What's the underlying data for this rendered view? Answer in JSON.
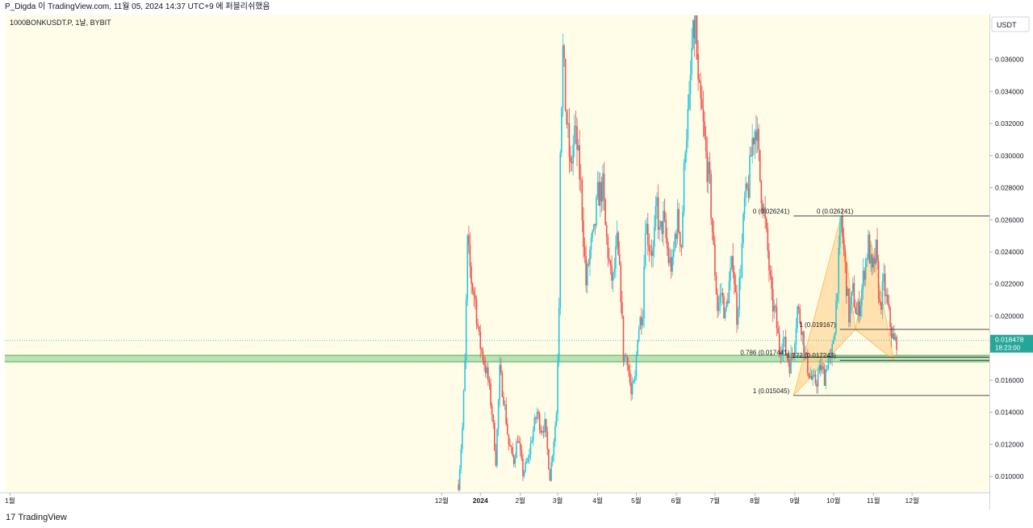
{
  "header": {
    "attribution": "P_Digda 이 TradingView.com, 11월 05, 2024 14:37 UTC+9 에 퍼블리쉬했음"
  },
  "footer": {
    "brand_mark": "17",
    "brand_name": "TradingView"
  },
  "chart_data": {
    "type": "candlestick",
    "symbol": "1000BONKUSDT.P, 1날, BYBIT",
    "currency_label": "USDT",
    "ylim": [
      0.009,
      0.0388
    ],
    "y_ticks": [
      "0.010000",
      "0.012000",
      "0.014000",
      "0.016000",
      "0.018000",
      "0.020000",
      "0.022000",
      "0.024000",
      "0.026000",
      "0.028000",
      "0.030000",
      "0.032000",
      "0.034000",
      "0.036000"
    ],
    "x_ticks": [
      {
        "label": "1월",
        "day": 0
      },
      {
        "label": "12월",
        "day": 335
      },
      {
        "label": "2024",
        "day": 365
      },
      {
        "label": "2월",
        "day": 396
      },
      {
        "label": "3월",
        "day": 425
      },
      {
        "label": "4월",
        "day": 456
      },
      {
        "label": "5월",
        "day": 486
      },
      {
        "label": "6월",
        "day": 517
      },
      {
        "label": "7월",
        "day": 547
      },
      {
        "label": "8월",
        "day": 578
      },
      {
        "label": "9월",
        "day": 609
      },
      {
        "label": "10월",
        "day": 639
      },
      {
        "label": "11월",
        "day": 670
      },
      {
        "label": "12월",
        "day": 700
      }
    ],
    "up_color": "#26c6da",
    "down_color": "#ef5350",
    "background_color": "#fffde8",
    "last_price": "0.018478",
    "countdown": "18:23:00",
    "support_zone": [
      0.01715,
      0.01755
    ],
    "support_zone_color": "#4caf50",
    "path": [
      [
        348,
        0.0095
      ],
      [
        351,
        0.013
      ],
      [
        353,
        0.017
      ],
      [
        355,
        0.0245
      ],
      [
        358,
        0.0222
      ],
      [
        361,
        0.021
      ],
      [
        364,
        0.0185
      ],
      [
        367,
        0.0175
      ],
      [
        371,
        0.016
      ],
      [
        374,
        0.014
      ],
      [
        377,
        0.011
      ],
      [
        380,
        0.0165
      ],
      [
        383,
        0.015
      ],
      [
        387,
        0.012
      ],
      [
        391,
        0.011
      ],
      [
        394,
        0.0125
      ],
      [
        398,
        0.0102
      ],
      [
        402,
        0.011
      ],
      [
        405,
        0.0125
      ],
      [
        409,
        0.014
      ],
      [
        412,
        0.013
      ],
      [
        415,
        0.0132
      ],
      [
        419,
        0.01
      ],
      [
        424,
        0.014
      ],
      [
        426,
        0.021
      ],
      [
        427,
        0.031
      ],
      [
        429,
        0.0365
      ],
      [
        431,
        0.0332
      ],
      [
        435,
        0.029
      ],
      [
        438,
        0.0315
      ],
      [
        440,
        0.0305
      ],
      [
        443,
        0.028
      ],
      [
        447,
        0.022
      ],
      [
        450,
        0.024
      ],
      [
        453,
        0.025
      ],
      [
        456,
        0.0275
      ],
      [
        460,
        0.028
      ],
      [
        462,
        0.0255
      ],
      [
        466,
        0.0225
      ],
      [
        468,
        0.0222
      ],
      [
        471,
        0.0245
      ],
      [
        474,
        0.0215
      ],
      [
        476,
        0.0175
      ],
      [
        479,
        0.0175
      ],
      [
        482,
        0.015
      ],
      [
        485,
        0.016
      ],
      [
        487,
        0.019
      ],
      [
        491,
        0.0205
      ],
      [
        493,
        0.026
      ],
      [
        496,
        0.0245
      ],
      [
        499,
        0.024
      ],
      [
        502,
        0.027
      ],
      [
        504,
        0.025
      ],
      [
        507,
        0.026
      ],
      [
        511,
        0.0235
      ],
      [
        514,
        0.023
      ],
      [
        516,
        0.025
      ],
      [
        518,
        0.026
      ],
      [
        521,
        0.0245
      ],
      [
        524,
        0.031
      ],
      [
        527,
        0.033
      ],
      [
        529,
        0.0365
      ],
      [
        532,
        0.0385
      ],
      [
        534,
        0.034
      ],
      [
        537,
        0.0325
      ],
      [
        540,
        0.03
      ],
      [
        543,
        0.028
      ],
      [
        546,
        0.024
      ],
      [
        549,
        0.0205
      ],
      [
        552,
        0.0215
      ],
      [
        555,
        0.02
      ],
      [
        558,
        0.022
      ],
      [
        561,
        0.0235
      ],
      [
        564,
        0.02
      ],
      [
        567,
        0.023
      ],
      [
        570,
        0.027
      ],
      [
        573,
        0.028
      ],
      [
        576,
        0.031
      ],
      [
        579,
        0.032
      ],
      [
        582,
        0.0285
      ],
      [
        585,
        0.0265
      ],
      [
        588,
        0.024
      ],
      [
        591,
        0.021
      ],
      [
        594,
        0.02
      ],
      [
        597,
        0.018
      ],
      [
        600,
        0.0185
      ],
      [
        603,
        0.0175
      ],
      [
        605,
        0.017
      ],
      [
        608,
        0.018
      ],
      [
        611,
        0.0205
      ],
      [
        614,
        0.0195
      ],
      [
        617,
        0.0175
      ],
      [
        620,
        0.0165
      ],
      [
        623,
        0.0158
      ],
      [
        626,
        0.016
      ],
      [
        629,
        0.0168
      ],
      [
        632,
        0.0162
      ],
      [
        635,
        0.0175
      ],
      [
        637,
        0.017
      ],
      [
        640,
        0.0195
      ],
      [
        643,
        0.0235
      ],
      [
        645,
        0.026
      ],
      [
        648,
        0.023
      ],
      [
        651,
        0.02
      ],
      [
        654,
        0.0215
      ],
      [
        657,
        0.02
      ],
      [
        660,
        0.021
      ],
      [
        663,
        0.023
      ],
      [
        666,
        0.0245
      ],
      [
        669,
        0.0225
      ],
      [
        672,
        0.024
      ],
      [
        675,
        0.0205
      ],
      [
        678,
        0.022
      ],
      [
        681,
        0.0205
      ],
      [
        684,
        0.019
      ],
      [
        686,
        0.0183
      ],
      [
        688,
        0.0185
      ]
    ],
    "harmonic_pattern": [
      {
        "day": 608,
        "price": 0.015045
      },
      {
        "day": 645,
        "price": 0.026241
      },
      {
        "day": 656,
        "price": 0.019167
      },
      {
        "day": 668,
        "price": 0.0247
      },
      {
        "day": 686,
        "price": 0.017243
      }
    ],
    "fib_levels": [
      {
        "label": "0 (0.026241)",
        "price": 0.026241
      },
      {
        "label": "0 (0.026241)",
        "price": 0.026241
      },
      {
        "label": "1 (0.019167)",
        "price": 0.019167
      },
      {
        "label": "0.786 (0.017441)",
        "price": 0.017441
      },
      {
        "label": "1.272 (0.017243)",
        "price": 0.017243
      },
      {
        "label": "1 (0.015045)",
        "price": 0.015045
      }
    ]
  }
}
